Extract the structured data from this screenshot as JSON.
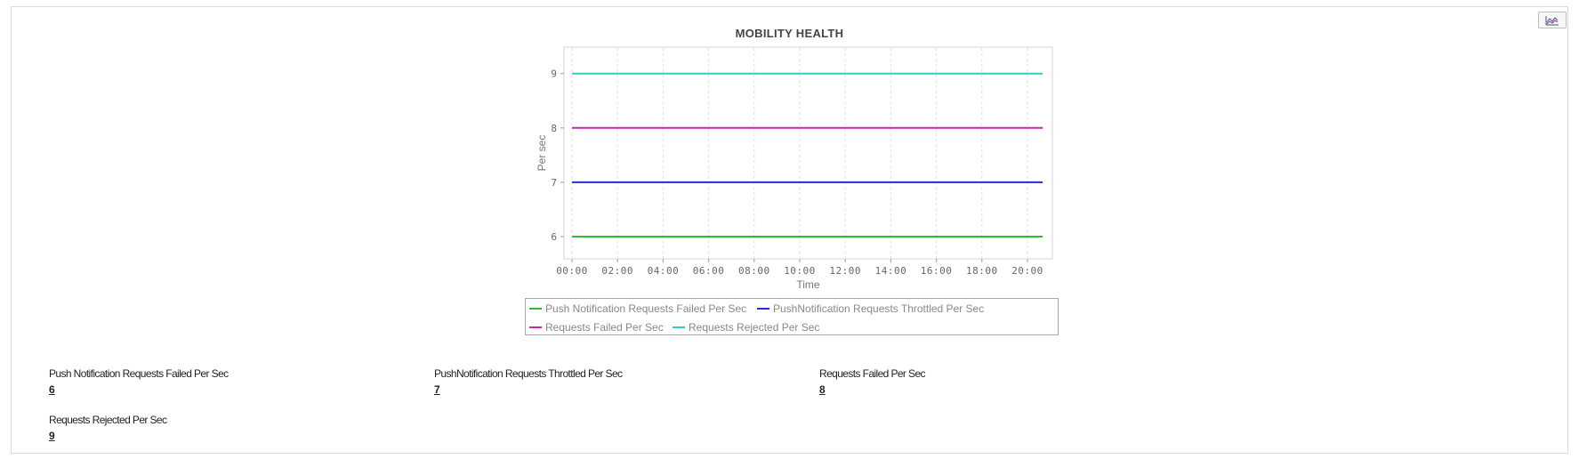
{
  "panel": {
    "export_icon": "line-chart-icon"
  },
  "chart_data": {
    "type": "line",
    "title": "MOBILITY HEALTH",
    "xlabel": "Time",
    "ylabel": "Per sec",
    "x_ticks": [
      "00:00",
      "02:00",
      "04:00",
      "06:00",
      "08:00",
      "10:00",
      "12:00",
      "14:00",
      "16:00",
      "18:00",
      "20:00"
    ],
    "x_range_hours": [
      0,
      20.67
    ],
    "y_ticks": [
      6,
      7,
      8,
      9
    ],
    "ylim": [
      5.6,
      9.45
    ],
    "grid": "vertical-dashed",
    "legend_position": "bottom",
    "series": [
      {
        "name": "Push Notification Requests Failed Per Sec",
        "color": "#33bb33",
        "x": [
          0,
          20.67
        ],
        "y": [
          6,
          6
        ]
      },
      {
        "name": "PushNotification Requests Throttled Per Sec",
        "color": "#2a2ad6",
        "x": [
          0,
          20.67
        ],
        "y": [
          7,
          7
        ]
      },
      {
        "name": "Requests Failed Per Sec",
        "color": "#cc22aa",
        "x": [
          0,
          20.67
        ],
        "y": [
          8,
          8
        ]
      },
      {
        "name": "Requests Rejected Per Sec",
        "color": "#33cccc",
        "x": [
          0,
          20.67
        ],
        "y": [
          9,
          9
        ]
      }
    ]
  },
  "metrics": [
    {
      "label": "Push Notification Requests Failed Per Sec",
      "value": "6"
    },
    {
      "label": "PushNotification Requests Throttled Per Sec",
      "value": "7"
    },
    {
      "label": "Requests Failed Per Sec",
      "value": "8"
    },
    {
      "label": "Requests Rejected Per Sec",
      "value": "9"
    }
  ]
}
